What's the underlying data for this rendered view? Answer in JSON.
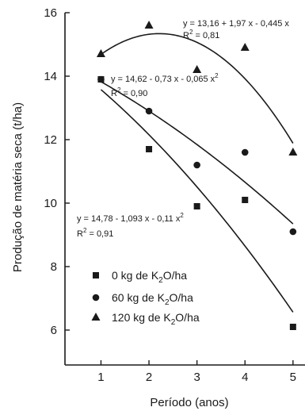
{
  "chart_data": {
    "type": "scatter",
    "title": "",
    "xlabel": "Período (anos)",
    "ylabel": "Produção de matéria seca (t/ha)",
    "xlim": [
      0.25,
      5.25
    ],
    "ylim": [
      4.9,
      16
    ],
    "x_ticks": [
      1,
      2,
      3,
      4,
      5
    ],
    "y_ticks": [
      6,
      8,
      10,
      12,
      14,
      16
    ],
    "grid": false,
    "legend_position": "bottom-left",
    "series": [
      {
        "name_parts": [
          "0 kg de K",
          "2",
          "O/ha"
        ],
        "marker": "square",
        "x": [
          1,
          2,
          3,
          4,
          5
        ],
        "y": [
          13.9,
          11.7,
          9.9,
          10.1,
          6.1
        ],
        "fit_coeffs": [
          14.78,
          -1.093,
          -0.11
        ],
        "equation": "y = 14,78 - 1,093 x - 0,11 x",
        "equation_sup": "2",
        "r2_label": "R",
        "r2_sup": "2",
        "r2_value": " = 0,91"
      },
      {
        "name_parts": [
          "60 kg de K",
          "2",
          "O/ha"
        ],
        "marker": "circle",
        "x": [
          1,
          2,
          3,
          4,
          5
        ],
        "y": [
          13.9,
          12.9,
          11.2,
          11.6,
          9.1
        ],
        "fit_coeffs": [
          14.62,
          -0.73,
          -0.065
        ],
        "equation": "y = 14,62 - 0,73 x - 0,065 x",
        "equation_sup": "2",
        "r2_label": "R",
        "r2_sup": "2",
        "r2_value": " = 0,90"
      },
      {
        "name_parts": [
          "120 kg de K",
          "2",
          "O/ha"
        ],
        "marker": "triangle",
        "x": [
          1,
          2,
          3,
          4,
          5
        ],
        "y": [
          14.7,
          15.6,
          14.2,
          14.9,
          11.6
        ],
        "fit_coeffs": [
          13.16,
          1.97,
          -0.445
        ],
        "equation": "y = 13,16 + 1,97 x - 0,445 x",
        "equation_sup": "",
        "r2_label": "R",
        "r2_sup": "2",
        "r2_value": " = 0,81"
      }
    ],
    "colors": {
      "ink": "#1a1a1a",
      "background": "#ffffff"
    }
  }
}
